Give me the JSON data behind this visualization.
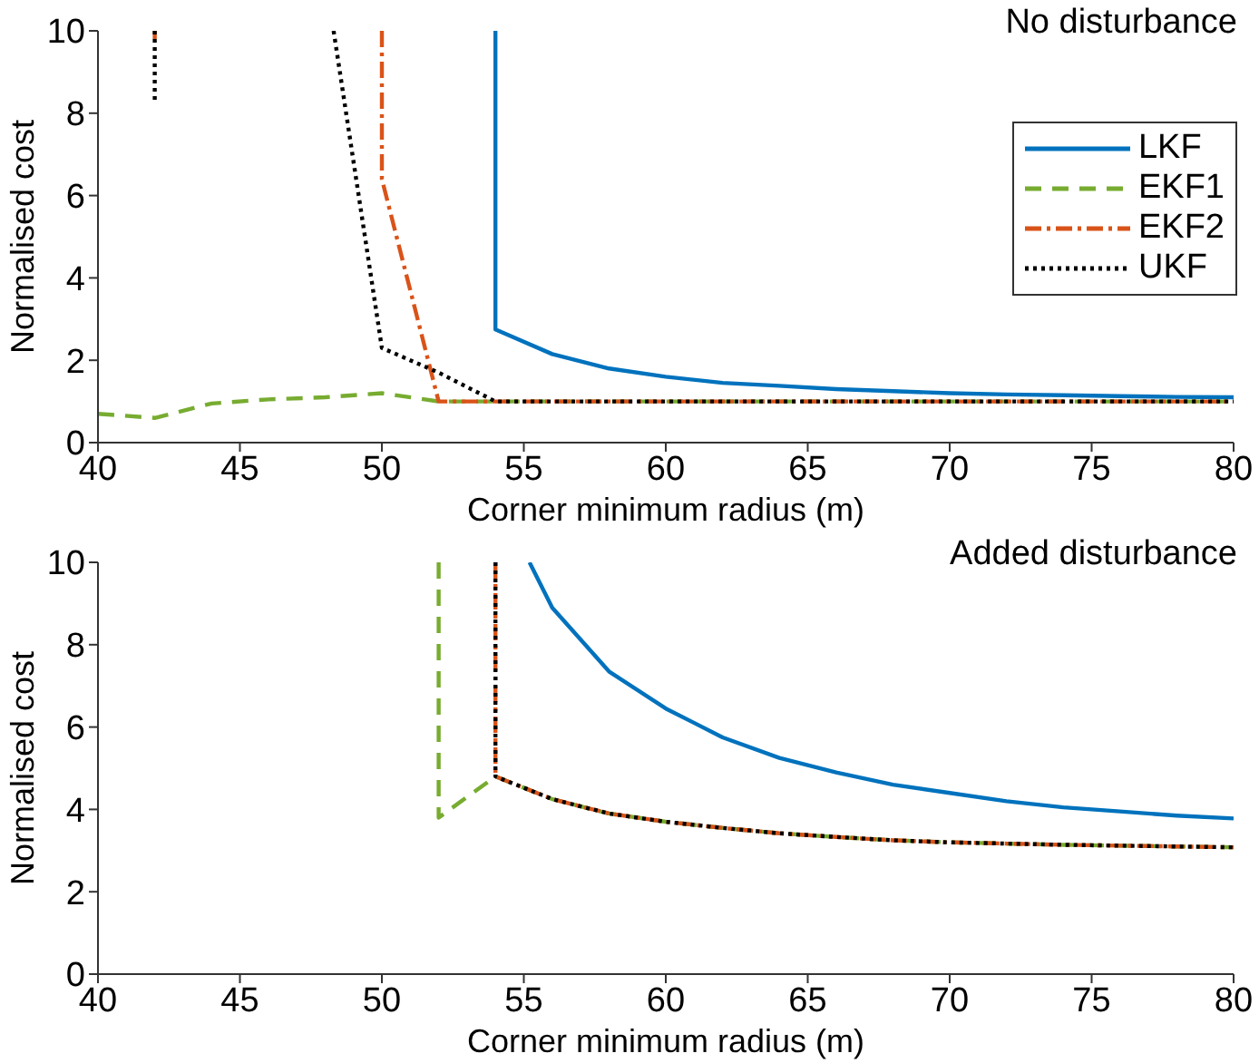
{
  "chart_data": [
    {
      "type": "line",
      "xlabel": "Corner minimum radius (m)",
      "ylabel": "Normalised cost",
      "annotations": [
        "No disturbance"
      ],
      "xlim": [
        40,
        80
      ],
      "xticks": [
        40,
        45,
        50,
        55,
        60,
        65,
        70,
        75,
        80
      ],
      "ylim": [
        0,
        10
      ],
      "yticks": [
        0,
        2,
        4,
        6,
        8,
        10
      ],
      "legend": "top right",
      "grid": false,
      "marker": "none",
      "series": [
        {
          "name": "LKF",
          "color": "#0072bd",
          "line_style": "solid",
          "x": [
            54,
            54,
            56,
            58,
            60,
            62,
            64,
            66,
            68,
            70,
            72,
            74,
            76,
            78,
            80
          ],
          "values": [
            10,
            2.75,
            2.15,
            1.8,
            1.6,
            1.45,
            1.38,
            1.3,
            1.25,
            1.2,
            1.17,
            1.15,
            1.13,
            1.11,
            1.1
          ]
        },
        {
          "name": "EKF1",
          "color": "#77ac30",
          "line_style": "dashed",
          "x": [
            40,
            42,
            44,
            46,
            48,
            50,
            52,
            54,
            56,
            58,
            60,
            62,
            64,
            66,
            68,
            70,
            72,
            74,
            76,
            78,
            80
          ],
          "values": [
            0.7,
            0.6,
            0.95,
            1.05,
            1.1,
            1.2,
            1,
            1,
            1,
            1,
            1,
            1,
            1,
            1,
            1,
            1,
            1,
            1,
            1,
            1,
            1
          ]
        },
        {
          "name": "EKF2",
          "color": "#d95319",
          "line_style": "dashdot",
          "x": [
            42,
            42,
            44,
            50,
            50,
            52,
            54,
            56,
            58,
            60,
            62,
            64,
            66,
            68,
            70,
            72,
            74,
            76,
            78,
            80
          ],
          "values": [
            10,
            9.8,
            null,
            10,
            6.4,
            1,
            1,
            1,
            1,
            1,
            1,
            1,
            1,
            1,
            1,
            1,
            1,
            1,
            1,
            1
          ]
        },
        {
          "name": "UKF",
          "color": "#000000",
          "line_style": "dotted",
          "x": [
            42,
            42,
            44,
            48.3,
            50,
            52,
            54,
            56,
            58,
            60,
            62,
            64,
            66,
            68,
            70,
            72,
            74,
            76,
            78,
            80
          ],
          "values": [
            10,
            8.3,
            null,
            10,
            2.3,
            1.7,
            1,
            1,
            1,
            1,
            1,
            1,
            1,
            1,
            1,
            1,
            1,
            1,
            1,
            1
          ]
        }
      ]
    },
    {
      "type": "line",
      "xlabel": "Corner minimum radius (m)",
      "ylabel": "Normalised cost",
      "annotations": [
        "Added disturbance"
      ],
      "xlim": [
        40,
        80
      ],
      "xticks": [
        40,
        45,
        50,
        55,
        60,
        65,
        70,
        75,
        80
      ],
      "ylim": [
        0,
        10
      ],
      "yticks": [
        0,
        2,
        4,
        6,
        8,
        10
      ],
      "grid": false,
      "marker": "none",
      "series": [
        {
          "color": "#0072bd",
          "line_style": "solid",
          "x": [
            55.2,
            56,
            58,
            60,
            62,
            64,
            66,
            68,
            70,
            72,
            74,
            76,
            78,
            80
          ],
          "values": [
            10,
            8.9,
            7.35,
            6.45,
            5.75,
            5.25,
            4.9,
            4.6,
            4.4,
            4.2,
            4.05,
            3.95,
            3.85,
            3.78
          ]
        },
        {
          "color": "#77ac30",
          "line_style": "dashed",
          "x": [
            52,
            52,
            54,
            56,
            58,
            60,
            62,
            64,
            66,
            68,
            70,
            72,
            74,
            76,
            78,
            80
          ],
          "values": [
            10,
            3.8,
            4.8,
            4.25,
            3.9,
            3.7,
            3.55,
            3.42,
            3.33,
            3.25,
            3.2,
            3.17,
            3.14,
            3.12,
            3.1,
            3.08
          ]
        },
        {
          "color": "#d95319",
          "line_style": "dashdot",
          "x": [
            54,
            54,
            56,
            58,
            60,
            62,
            64,
            66,
            68,
            70,
            72,
            74,
            76,
            78,
            80
          ],
          "values": [
            10,
            4.8,
            4.25,
            3.9,
            3.7,
            3.55,
            3.42,
            3.33,
            3.25,
            3.2,
            3.17,
            3.14,
            3.12,
            3.1,
            3.08
          ]
        },
        {
          "color": "#000000",
          "line_style": "dotted",
          "x": [
            54,
            54,
            56,
            58,
            60,
            62,
            64,
            66,
            68,
            70,
            72,
            74,
            76,
            78,
            80
          ],
          "values": [
            10,
            4.8,
            4.25,
            3.9,
            3.7,
            3.55,
            3.42,
            3.33,
            3.25,
            3.2,
            3.17,
            3.14,
            3.12,
            3.1,
            3.08
          ]
        }
      ]
    }
  ]
}
